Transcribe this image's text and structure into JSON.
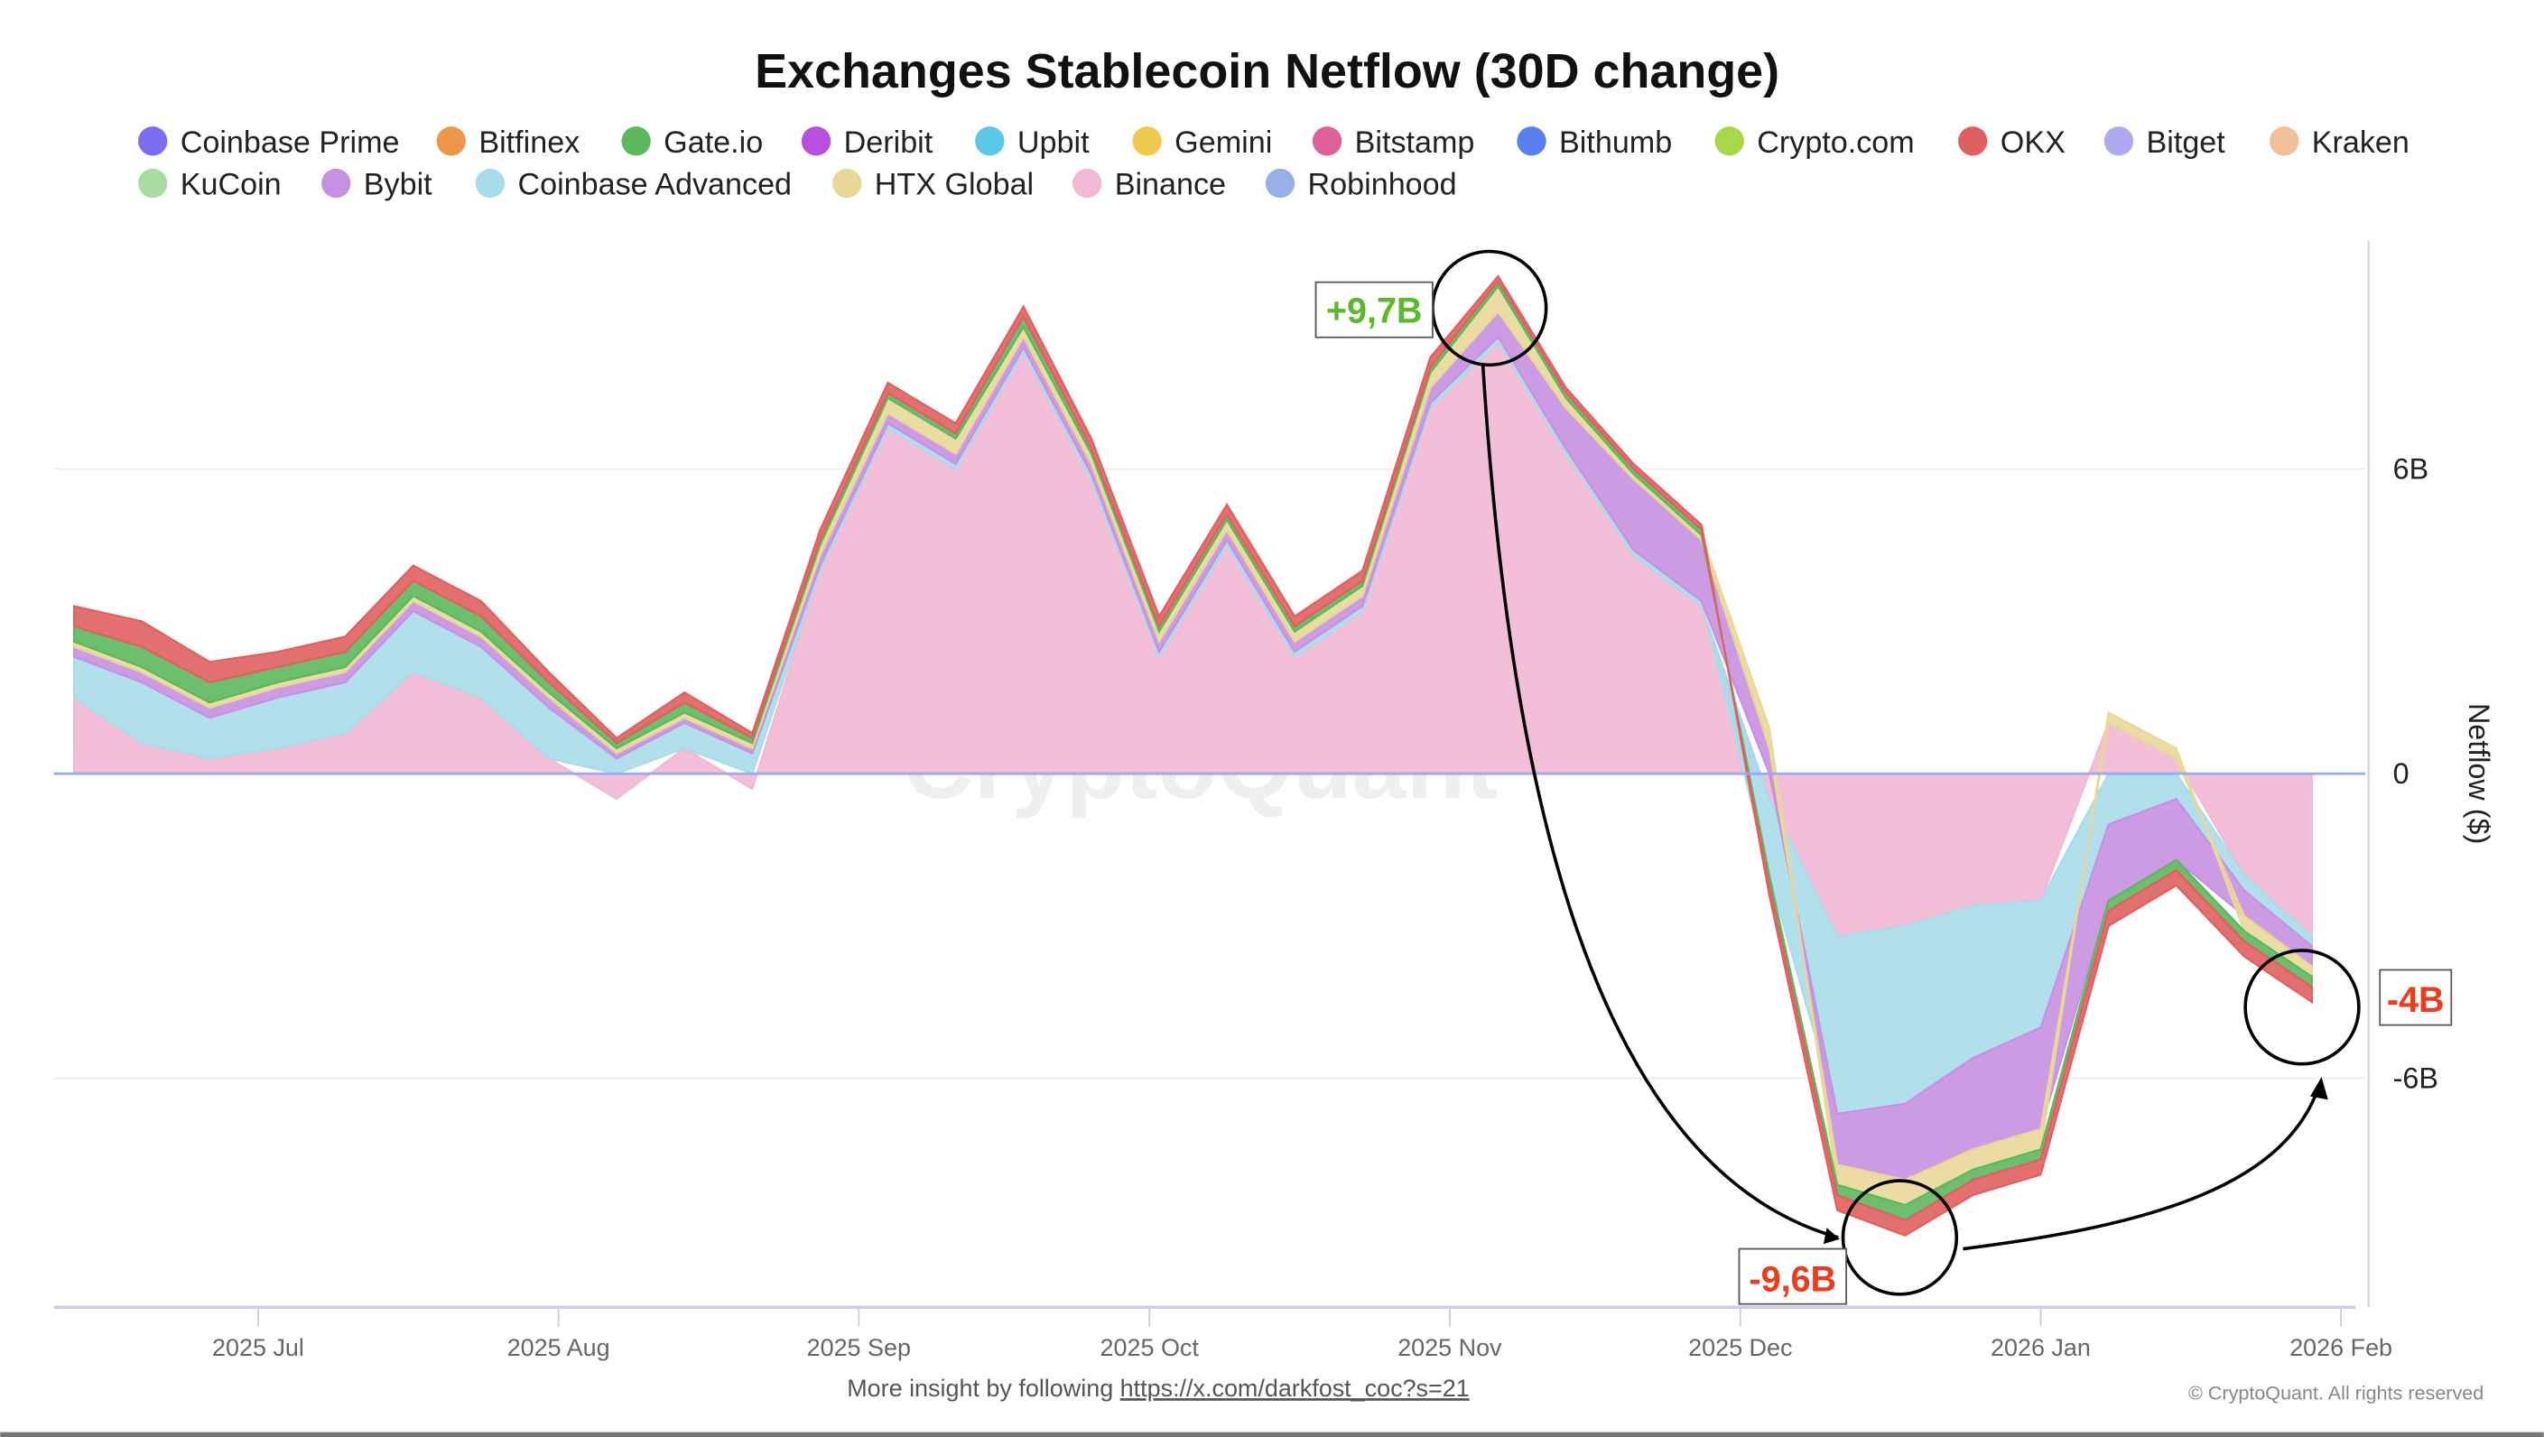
{
  "chart_data": {
    "type": "area",
    "stacked": true,
    "title": "Exchanges Stablecoin Netflow (30D change)",
    "ylabel": "Netflow ($)",
    "ylim": [
      -10.5,
      10
    ],
    "yticks": [
      "6B",
      "0",
      "-6B"
    ],
    "ytick_values": [
      6,
      0,
      -6
    ],
    "xticks": [
      "2025 Jul",
      "2025 Aug",
      "2025 Sep",
      "2025 Oct",
      "2025 Nov",
      "2025 Dec",
      "2026 Jan",
      "2026 Feb"
    ],
    "xtick_dates": [
      "2025-07-01",
      "2025-08-01",
      "2025-09-01",
      "2025-10-01",
      "2025-11-01",
      "2025-12-01",
      "2026-01-01",
      "2026-02-01"
    ],
    "grid": true,
    "legend_position": "top",
    "watermark": "CryptoQuant",
    "legend": [
      {
        "name": "Coinbase Prime",
        "color": "#7b6cf0"
      },
      {
        "name": "Bitfinex",
        "color": "#f0964a"
      },
      {
        "name": "Gate.io",
        "color": "#5cb85c"
      },
      {
        "name": "Deribit",
        "color": "#b84fe0"
      },
      {
        "name": "Upbit",
        "color": "#5bc8e8"
      },
      {
        "name": "Gemini",
        "color": "#f0c850"
      },
      {
        "name": "Bitstamp",
        "color": "#e0609a"
      },
      {
        "name": "Bithumb",
        "color": "#5a80ee"
      },
      {
        "name": "Crypto.com",
        "color": "#a8d848"
      },
      {
        "name": "OKX",
        "color": "#e06060"
      },
      {
        "name": "Bitget",
        "color": "#b0a8f0"
      },
      {
        "name": "Kraken",
        "color": "#f2c098"
      },
      {
        "name": "KuCoin",
        "color": "#a8dca0"
      },
      {
        "name": "Bybit",
        "color": "#c890e0"
      },
      {
        "name": "Coinbase Advanced",
        "color": "#a8dcea"
      },
      {
        "name": "HTX Global",
        "color": "#e8d898"
      },
      {
        "name": "Binance",
        "color": "#f2b8d4"
      },
      {
        "name": "Robinhood",
        "color": "#98b0e8"
      }
    ],
    "x": [
      "2025-06-12",
      "2025-06-19",
      "2025-06-26",
      "2025-07-03",
      "2025-07-10",
      "2025-07-17",
      "2025-07-24",
      "2025-07-31",
      "2025-08-07",
      "2025-08-14",
      "2025-08-21",
      "2025-08-28",
      "2025-09-04",
      "2025-09-11",
      "2025-09-18",
      "2025-09-25",
      "2025-10-02",
      "2025-10-09",
      "2025-10-16",
      "2025-10-23",
      "2025-10-30",
      "2025-11-06",
      "2025-11-13",
      "2025-11-20",
      "2025-11-27",
      "2025-12-04",
      "2025-12-11",
      "2025-12-18",
      "2025-12-25",
      "2026-01-01",
      "2026-01-08",
      "2026-01-15",
      "2026-01-22",
      "2026-01-29"
    ],
    "series": [
      {
        "name": "Binance",
        "values": [
          1.5,
          0.6,
          0.3,
          0.5,
          0.8,
          2.0,
          1.5,
          0.3,
          -0.5,
          0.5,
          -0.3,
          4.0,
          6.8,
          6.0,
          8.3,
          5.8,
          2.3,
          4.5,
          2.3,
          3.2,
          7.2,
          8.5,
          6.3,
          4.3,
          3.3,
          -0.5,
          -3.2,
          -3.0,
          -2.6,
          -2.5,
          1.0,
          0.3,
          -2.0,
          -3.2
        ]
      },
      {
        "name": "Coinbase Advanced",
        "values": [
          0.8,
          1.2,
          0.8,
          1.0,
          1.0,
          1.2,
          1.0,
          1.0,
          0.3,
          0.5,
          0.4,
          0.1,
          0.1,
          0.1,
          0.1,
          0.1,
          0.1,
          0.1,
          0.1,
          0.1,
          0.1,
          0.1,
          0.1,
          0.1,
          0.1,
          -1.5,
          -3.5,
          -3.5,
          -3.0,
          -2.5,
          -1.0,
          -0.5,
          -0.3,
          -0.2
        ]
      },
      {
        "name": "Bybit",
        "values": [
          0.2,
          0.2,
          0.2,
          0.2,
          0.2,
          0.2,
          0.2,
          0.2,
          0.1,
          0.1,
          0.1,
          0.2,
          0.2,
          0.2,
          0.2,
          0.2,
          0.2,
          0.2,
          0.2,
          0.2,
          0.3,
          0.5,
          0.8,
          1.4,
          1.2,
          0.5,
          -1.0,
          -1.5,
          -1.8,
          -2.0,
          -1.5,
          -1.2,
          -0.5,
          -0.4
        ]
      },
      {
        "name": "HTX Global",
        "values": [
          0.1,
          0.1,
          0.1,
          0.1,
          0.1,
          0.1,
          0.1,
          0.1,
          0.1,
          0.1,
          0.1,
          0.2,
          0.3,
          0.3,
          0.2,
          0.2,
          0.2,
          0.2,
          0.2,
          0.2,
          0.3,
          0.5,
          0.2,
          0.1,
          0.1,
          0.4,
          -0.4,
          -0.5,
          -0.4,
          -0.4,
          0.2,
          0.2,
          -0.3,
          -0.2
        ]
      },
      {
        "name": "Gate.io",
        "values": [
          0.3,
          0.4,
          0.4,
          0.3,
          0.3,
          0.3,
          0.3,
          0.2,
          0.1,
          0.2,
          0.1,
          0.1,
          0.1,
          0.1,
          0.2,
          0.1,
          0.1,
          0.1,
          0.1,
          0.1,
          0.1,
          0.1,
          0.1,
          0.1,
          0.1,
          -0.2,
          -0.2,
          -0.3,
          -0.2,
          -0.2,
          -0.2,
          -0.2,
          -0.2,
          -0.2
        ]
      },
      {
        "name": "OKX",
        "values": [
          0.4,
          0.5,
          0.4,
          0.3,
          0.3,
          0.3,
          0.3,
          0.2,
          0.1,
          0.2,
          0.1,
          0.2,
          0.2,
          0.2,
          0.2,
          0.2,
          0.2,
          0.2,
          0.2,
          0.2,
          0.2,
          0.1,
          0.1,
          0.1,
          0.1,
          -0.2,
          -0.3,
          -0.3,
          -0.3,
          -0.3,
          -0.3,
          -0.3,
          -0.3,
          -0.3
        ]
      }
    ],
    "annotations": [
      {
        "label": "+9,7B",
        "color": "#5cb82c"
      },
      {
        "label": "-9,6B",
        "color": "#f03a1c"
      },
      {
        "label": "-4B",
        "color": "#f03a1c"
      }
    ]
  },
  "footer": {
    "prefix": "More insight by following ",
    "link": "https://x.com/darkfost_coc?s=21",
    "copyright": "© CryptoQuant. All rights reserved"
  }
}
